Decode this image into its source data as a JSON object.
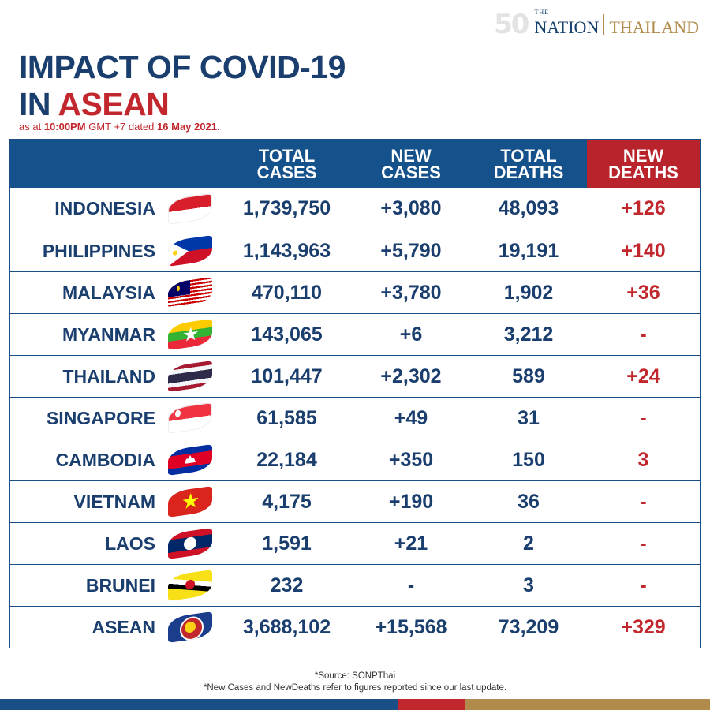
{
  "brand": {
    "anniversary": "50",
    "the": "THE",
    "nation": "NATION",
    "thailand": "THAILAND"
  },
  "title": {
    "line1": "IMPACT OF COVID-19",
    "in": "IN",
    "asean": "ASEAN"
  },
  "subtitle": {
    "prefix": "as at",
    "time": "10:00PM",
    "tz": "GMT +7 dated",
    "date": "16 May 2021."
  },
  "table": {
    "headers": {
      "total_cases_1": "TOTAL",
      "total_cases_2": "CASES",
      "new_cases_1": "NEW",
      "new_cases_2": "CASES",
      "total_deaths_1": "TOTAL",
      "total_deaths_2": "DEATHS",
      "new_deaths_1": "NEW",
      "new_deaths_2": "DEATHS"
    },
    "rows": [
      {
        "country": "INDONESIA",
        "flag": "indonesia-flag-icon",
        "total_cases": "1,739,750",
        "new_cases": "+3,080",
        "total_deaths": "48,093",
        "new_deaths": "+126"
      },
      {
        "country": "PHILIPPINES",
        "flag": "philippines-flag-icon",
        "total_cases": "1,143,963",
        "new_cases": "+5,790",
        "total_deaths": "19,191",
        "new_deaths": "+140"
      },
      {
        "country": "MALAYSIA",
        "flag": "malaysia-flag-icon",
        "total_cases": "470,110",
        "new_cases": "+3,780",
        "total_deaths": "1,902",
        "new_deaths": "+36"
      },
      {
        "country": "MYANMAR",
        "flag": "myanmar-flag-icon",
        "total_cases": "143,065",
        "new_cases": "+6",
        "total_deaths": "3,212",
        "new_deaths": "-"
      },
      {
        "country": "THAILAND",
        "flag": "thailand-flag-icon",
        "total_cases": "101,447",
        "new_cases": "+2,302",
        "total_deaths": "589",
        "new_deaths": "+24"
      },
      {
        "country": "SINGAPORE",
        "flag": "singapore-flag-icon",
        "total_cases": "61,585",
        "new_cases": "+49",
        "total_deaths": "31",
        "new_deaths": "-"
      },
      {
        "country": "CAMBODIA",
        "flag": "cambodia-flag-icon",
        "total_cases": "22,184",
        "new_cases": "+350",
        "total_deaths": "150",
        "new_deaths": "3"
      },
      {
        "country": "VIETNAM",
        "flag": "vietnam-flag-icon",
        "total_cases": "4,175",
        "new_cases": "+190",
        "total_deaths": "36",
        "new_deaths": "-"
      },
      {
        "country": "LAOS",
        "flag": "laos-flag-icon",
        "total_cases": "1,591",
        "new_cases": "+21",
        "total_deaths": "2",
        "new_deaths": "-"
      },
      {
        "country": "BRUNEI",
        "flag": "brunei-flag-icon",
        "total_cases": "232",
        "new_cases": "-",
        "total_deaths": "3",
        "new_deaths": "-"
      },
      {
        "country": "ASEAN",
        "flag": "asean-flag-icon",
        "total_cases": "3,688,102",
        "new_cases": "+15,568",
        "total_deaths": "73,209",
        "new_deaths": "+329"
      }
    ]
  },
  "footer": {
    "source": "*Source: SONPThai",
    "note": "*New Cases and NewDeaths refer to figures reported since our last update."
  },
  "colors": {
    "navy": "#1a3e6e",
    "header_blue": "#15518a",
    "red": "#c1272d",
    "gold": "#b08b4b"
  }
}
